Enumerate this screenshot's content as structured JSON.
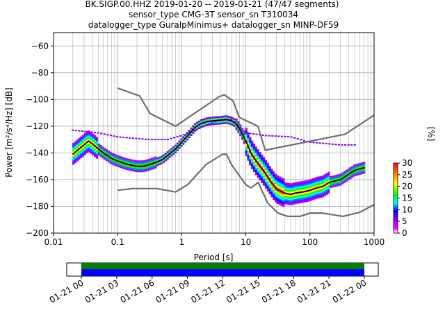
{
  "title_lines": [
    "BK.SIGP.00.HHZ   2019-01-20 -- 2019-01-21  (47/47 segments)",
    "sensor_type CMG-3T sensor_sn T310034",
    "datalogger_type GuralpMinimus+ datalogger_sn MINP-DF59"
  ],
  "chart_data": [
    {
      "type": "heatmap",
      "title": "BK.SIGP.00.HHZ   2019-01-20 -- 2019-01-21  (47/47 segments)",
      "xlabel": "Period [s]",
      "ylabel": "Power [m²/s⁴/Hz] [dB]",
      "xscale": "log",
      "xlim": [
        0.01,
        1000
      ],
      "ylim": [
        -200,
        -50
      ],
      "xticks": [
        "0.01",
        "0.1",
        "1",
        "10",
        "100",
        "1000"
      ],
      "yticks": [
        "−60",
        "−80",
        "−100",
        "−120",
        "−140",
        "−160",
        "−180",
        "−200"
      ],
      "grid": true,
      "colorbar": {
        "label": "[%]",
        "ticks": [
          "0",
          "5",
          "10",
          "15",
          "20",
          "25",
          "30"
        ],
        "range": [
          0,
          30
        ]
      },
      "nhnm": [
        [
          0.1,
          -91.5
        ],
        [
          0.22,
          -97.4
        ],
        [
          0.32,
          -110.5
        ],
        [
          0.8,
          -120
        ],
        [
          3.8,
          -98
        ],
        [
          4.6,
          -96.5
        ],
        [
          6.3,
          -101
        ],
        [
          7.9,
          -113.5
        ],
        [
          15.4,
          -120
        ],
        [
          20,
          -138
        ],
        [
          354.8,
          -126
        ],
        [
          10000,
          -80
        ]
      ],
      "nlnm": [
        [
          0.1,
          -168
        ],
        [
          0.17,
          -166.7
        ],
        [
          0.4,
          -166.7
        ],
        [
          0.8,
          -169.2
        ],
        [
          1.24,
          -163.7
        ],
        [
          2.4,
          -148.6
        ],
        [
          4.3,
          -141.1
        ],
        [
          5,
          -141.1
        ],
        [
          6,
          -149
        ],
        [
          10,
          -163.8
        ],
        [
          12,
          -166.2
        ],
        [
          15.6,
          -162.1
        ],
        [
          21.9,
          -177.5
        ],
        [
          31.6,
          -185
        ],
        [
          45,
          -187.5
        ],
        [
          70,
          -187.5
        ],
        [
          101,
          -185
        ],
        [
          154,
          -185
        ],
        [
          328,
          -187.5
        ],
        [
          600,
          -184.4
        ],
        [
          1000,
          -178.7
        ]
      ],
      "mode": [
        [
          0.02,
          -141
        ],
        [
          0.025,
          -137
        ],
        [
          0.03,
          -134
        ],
        [
          0.035,
          -131
        ],
        [
          0.04,
          -133
        ],
        [
          0.05,
          -137
        ],
        [
          0.06,
          -140
        ],
        [
          0.08,
          -144
        ],
        [
          0.1,
          -146
        ],
        [
          0.13,
          -148
        ],
        [
          0.16,
          -149
        ],
        [
          0.2,
          -150
        ],
        [
          0.25,
          -150
        ],
        [
          0.3,
          -149
        ],
        [
          0.4,
          -147
        ],
        [
          0.5,
          -145
        ],
        [
          0.6,
          -142
        ],
        [
          0.8,
          -137
        ],
        [
          1,
          -132
        ],
        [
          1.3,
          -126
        ],
        [
          1.6,
          -121
        ],
        [
          2,
          -118
        ],
        [
          2.5,
          -116.5
        ],
        [
          3,
          -116
        ],
        [
          4,
          -115.5
        ],
        [
          5,
          -115
        ],
        [
          6,
          -116
        ],
        [
          7,
          -118
        ],
        [
          8,
          -122
        ],
        [
          10,
          -131
        ],
        [
          12,
          -140
        ],
        [
          15,
          -147
        ],
        [
          20,
          -155
        ],
        [
          25,
          -162
        ],
        [
          30,
          -167
        ],
        [
          40,
          -170
        ],
        [
          50,
          -171
        ],
        [
          60,
          -170
        ],
        [
          80,
          -169
        ],
        [
          100,
          -168
        ],
        [
          130,
          -166
        ],
        [
          160,
          -165
        ],
        [
          200,
          -162
        ],
        [
          300,
          -160
        ],
        [
          400,
          -156
        ],
        [
          500,
          -153
        ],
        [
          700,
          -151
        ]
      ],
      "upper_spread_line": [
        [
          0.02,
          -123
        ],
        [
          0.05,
          -125
        ],
        [
          0.1,
          -128
        ],
        [
          0.3,
          -130
        ],
        [
          0.6,
          -130
        ],
        [
          1,
          -127
        ],
        [
          2,
          -121
        ],
        [
          4,
          -115
        ],
        [
          6,
          -115
        ],
        [
          10,
          -125
        ],
        [
          20,
          -127
        ],
        [
          50,
          -128
        ],
        [
          100,
          -132
        ],
        [
          300,
          -134
        ],
        [
          500,
          -134
        ]
      ],
      "timeline": {
        "xticks": [
          "01-21 00",
          "01-21 03",
          "01-21 06",
          "01-21 09",
          "01-21 12",
          "01-21 15",
          "01-21 18",
          "01-21 21",
          "01-22 00"
        ],
        "bar_colors": [
          "#008000",
          "#0000ff"
        ]
      },
      "colors": {
        "model_lines": "#6e6e6e",
        "mode_line": "#000000",
        "grid": "#b0b0b0"
      }
    }
  ]
}
